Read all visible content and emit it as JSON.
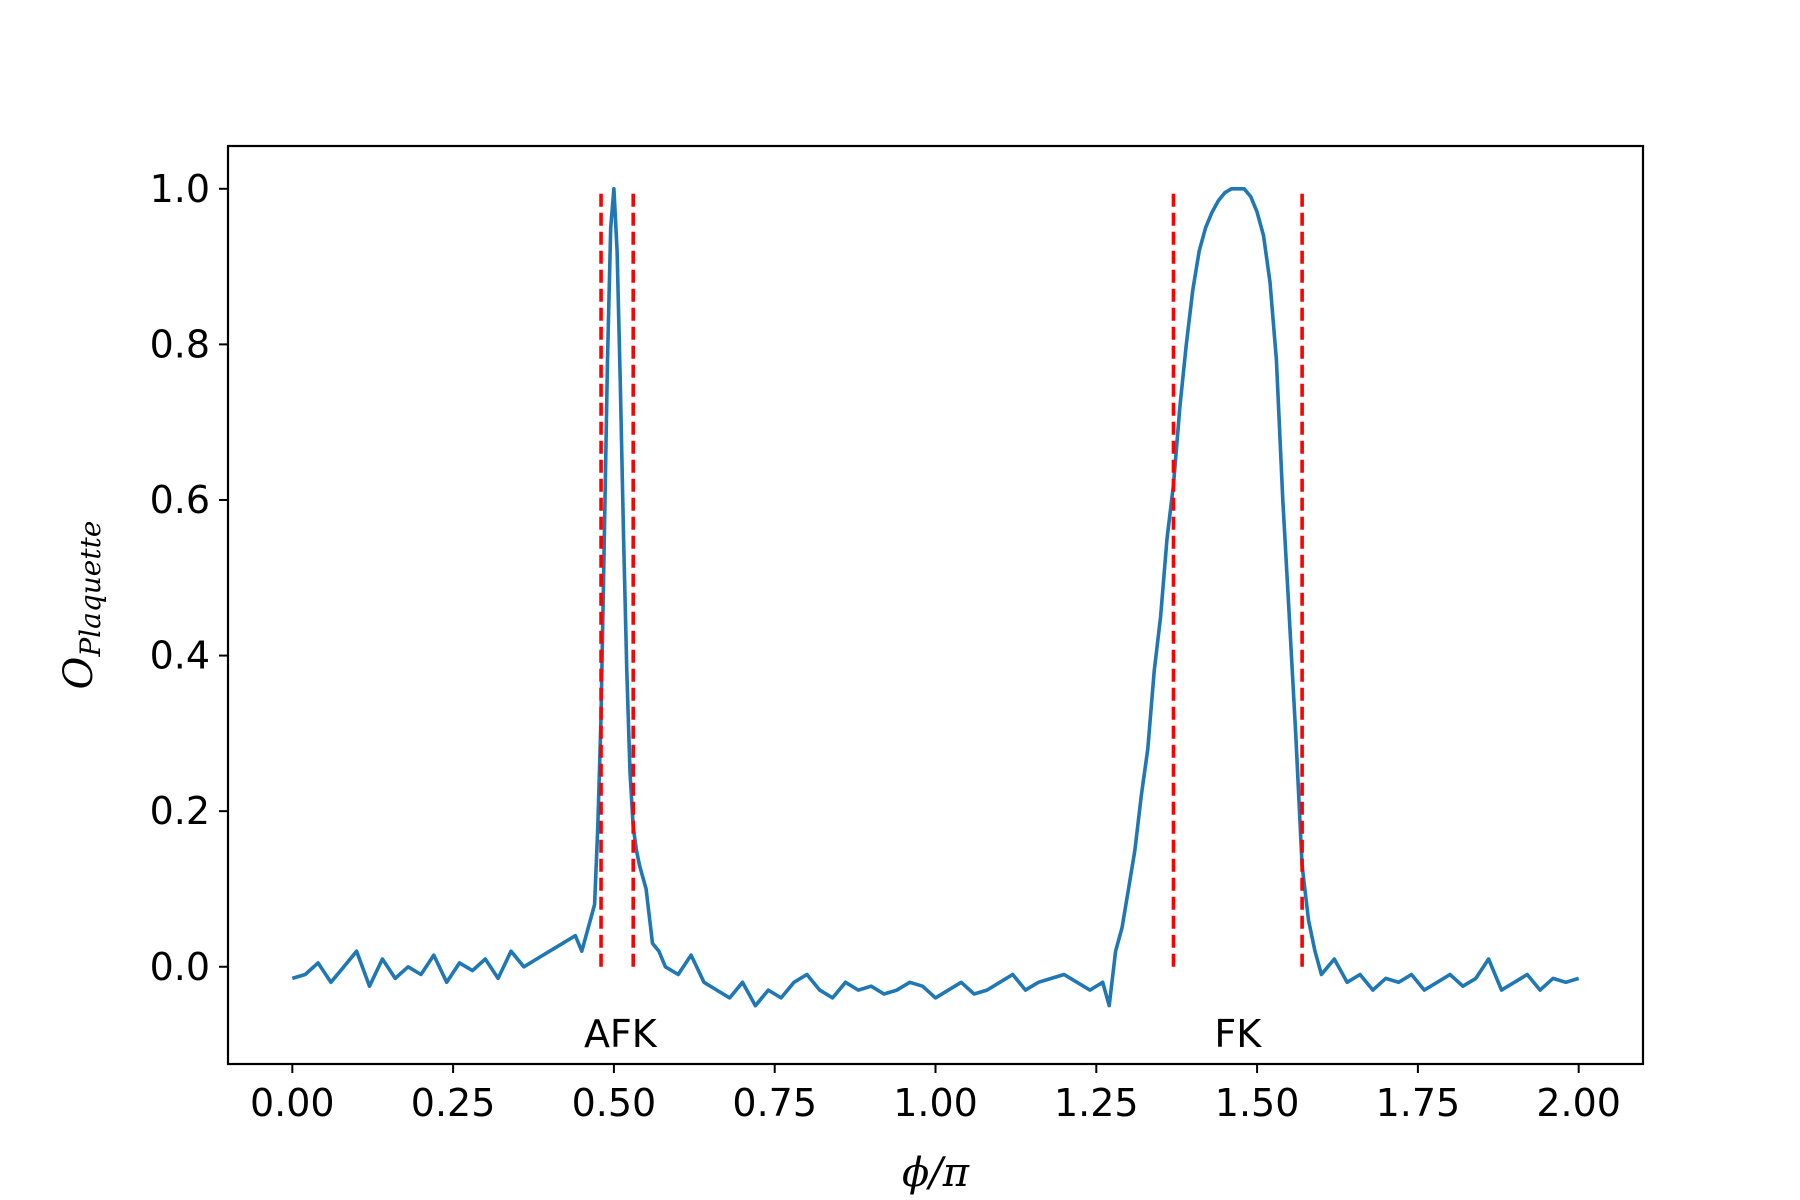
{
  "chart_data": {
    "type": "line",
    "title": "",
    "xlabel": "ϕ/π",
    "ylabel_main": "O",
    "ylabel_sub": "Plaquette",
    "xlim": [
      -0.1,
      2.1
    ],
    "ylim": [
      -0.125,
      1.055
    ],
    "xticks": [
      0.0,
      0.25,
      0.5,
      0.75,
      1.0,
      1.25,
      1.5,
      1.75,
      2.0
    ],
    "xtick_labels": [
      "0.00",
      "0.25",
      "0.50",
      "0.75",
      "1.00",
      "1.25",
      "1.50",
      "1.75",
      "2.00"
    ],
    "yticks": [
      0.0,
      0.2,
      0.4,
      0.6,
      0.8,
      1.0
    ],
    "ytick_labels": [
      "0.0",
      "0.2",
      "0.4",
      "0.6",
      "0.8",
      "1.0"
    ],
    "grid": false,
    "series": [
      {
        "color": "#1f77b4",
        "x": [
          0.0,
          0.02,
          0.04,
          0.06,
          0.08,
          0.1,
          0.12,
          0.14,
          0.16,
          0.18,
          0.2,
          0.22,
          0.24,
          0.26,
          0.28,
          0.3,
          0.32,
          0.34,
          0.36,
          0.38,
          0.4,
          0.42,
          0.44,
          0.45,
          0.46,
          0.47,
          0.475,
          0.48,
          0.485,
          0.49,
          0.495,
          0.5,
          0.505,
          0.51,
          0.515,
          0.52,
          0.525,
          0.53,
          0.535,
          0.54,
          0.55,
          0.56,
          0.57,
          0.58,
          0.6,
          0.62,
          0.64,
          0.66,
          0.68,
          0.7,
          0.72,
          0.74,
          0.76,
          0.78,
          0.8,
          0.82,
          0.84,
          0.86,
          0.88,
          0.9,
          0.92,
          0.94,
          0.96,
          0.98,
          1.0,
          1.02,
          1.04,
          1.06,
          1.08,
          1.1,
          1.12,
          1.14,
          1.16,
          1.18,
          1.2,
          1.22,
          1.24,
          1.26,
          1.27,
          1.28,
          1.29,
          1.3,
          1.31,
          1.32,
          1.33,
          1.34,
          1.35,
          1.36,
          1.37,
          1.38,
          1.39,
          1.4,
          1.41,
          1.42,
          1.43,
          1.44,
          1.45,
          1.46,
          1.47,
          1.48,
          1.49,
          1.5,
          1.51,
          1.52,
          1.53,
          1.54,
          1.55,
          1.56,
          1.57,
          1.58,
          1.59,
          1.6,
          1.62,
          1.64,
          1.66,
          1.68,
          1.7,
          1.72,
          1.74,
          1.76,
          1.78,
          1.8,
          1.82,
          1.84,
          1.86,
          1.88,
          1.9,
          1.92,
          1.94,
          1.96,
          1.98,
          2.0
        ],
        "y": [
          -0.015,
          -0.01,
          0.005,
          -0.02,
          0.0,
          0.02,
          -0.025,
          0.01,
          -0.015,
          0.0,
          -0.01,
          0.015,
          -0.02,
          0.005,
          -0.005,
          0.01,
          -0.015,
          0.02,
          0.0,
          0.01,
          0.02,
          0.03,
          0.04,
          0.02,
          0.05,
          0.08,
          0.18,
          0.32,
          0.55,
          0.78,
          0.95,
          1.0,
          0.92,
          0.75,
          0.55,
          0.38,
          0.25,
          0.18,
          0.15,
          0.13,
          0.1,
          0.03,
          0.02,
          0.0,
          -0.01,
          0.015,
          -0.02,
          -0.03,
          -0.04,
          -0.02,
          -0.05,
          -0.03,
          -0.04,
          -0.02,
          -0.01,
          -0.03,
          -0.04,
          -0.02,
          -0.03,
          -0.025,
          -0.035,
          -0.03,
          -0.02,
          -0.025,
          -0.04,
          -0.03,
          -0.02,
          -0.035,
          -0.03,
          -0.02,
          -0.01,
          -0.03,
          -0.02,
          -0.015,
          -0.01,
          -0.02,
          -0.03,
          -0.02,
          -0.05,
          0.02,
          0.05,
          0.1,
          0.15,
          0.22,
          0.28,
          0.38,
          0.45,
          0.55,
          0.62,
          0.72,
          0.8,
          0.87,
          0.92,
          0.95,
          0.97,
          0.985,
          0.995,
          1.0,
          1.0,
          1.0,
          0.99,
          0.97,
          0.94,
          0.88,
          0.78,
          0.6,
          0.45,
          0.3,
          0.13,
          0.06,
          0.02,
          -0.01,
          0.01,
          -0.02,
          -0.01,
          -0.03,
          -0.015,
          -0.02,
          -0.01,
          -0.03,
          -0.02,
          -0.01,
          -0.025,
          -0.015,
          0.01,
          -0.03,
          -0.02,
          -0.01,
          -0.03,
          -0.015,
          -0.02,
          -0.015
        ]
      }
    ],
    "vlines": [
      {
        "x": 0.48,
        "color": "#ff0000",
        "style": "dashed"
      },
      {
        "x": 0.53,
        "color": "#ff0000",
        "style": "dashed"
      },
      {
        "x": 1.37,
        "color": "#ff0000",
        "style": "dashed"
      },
      {
        "x": 1.57,
        "color": "#ff0000",
        "style": "dashed"
      }
    ],
    "annotations": [
      {
        "text": "AFK",
        "x": 0.51,
        "y": -0.085
      },
      {
        "text": "FK",
        "x": 1.47,
        "y": -0.085
      }
    ]
  }
}
